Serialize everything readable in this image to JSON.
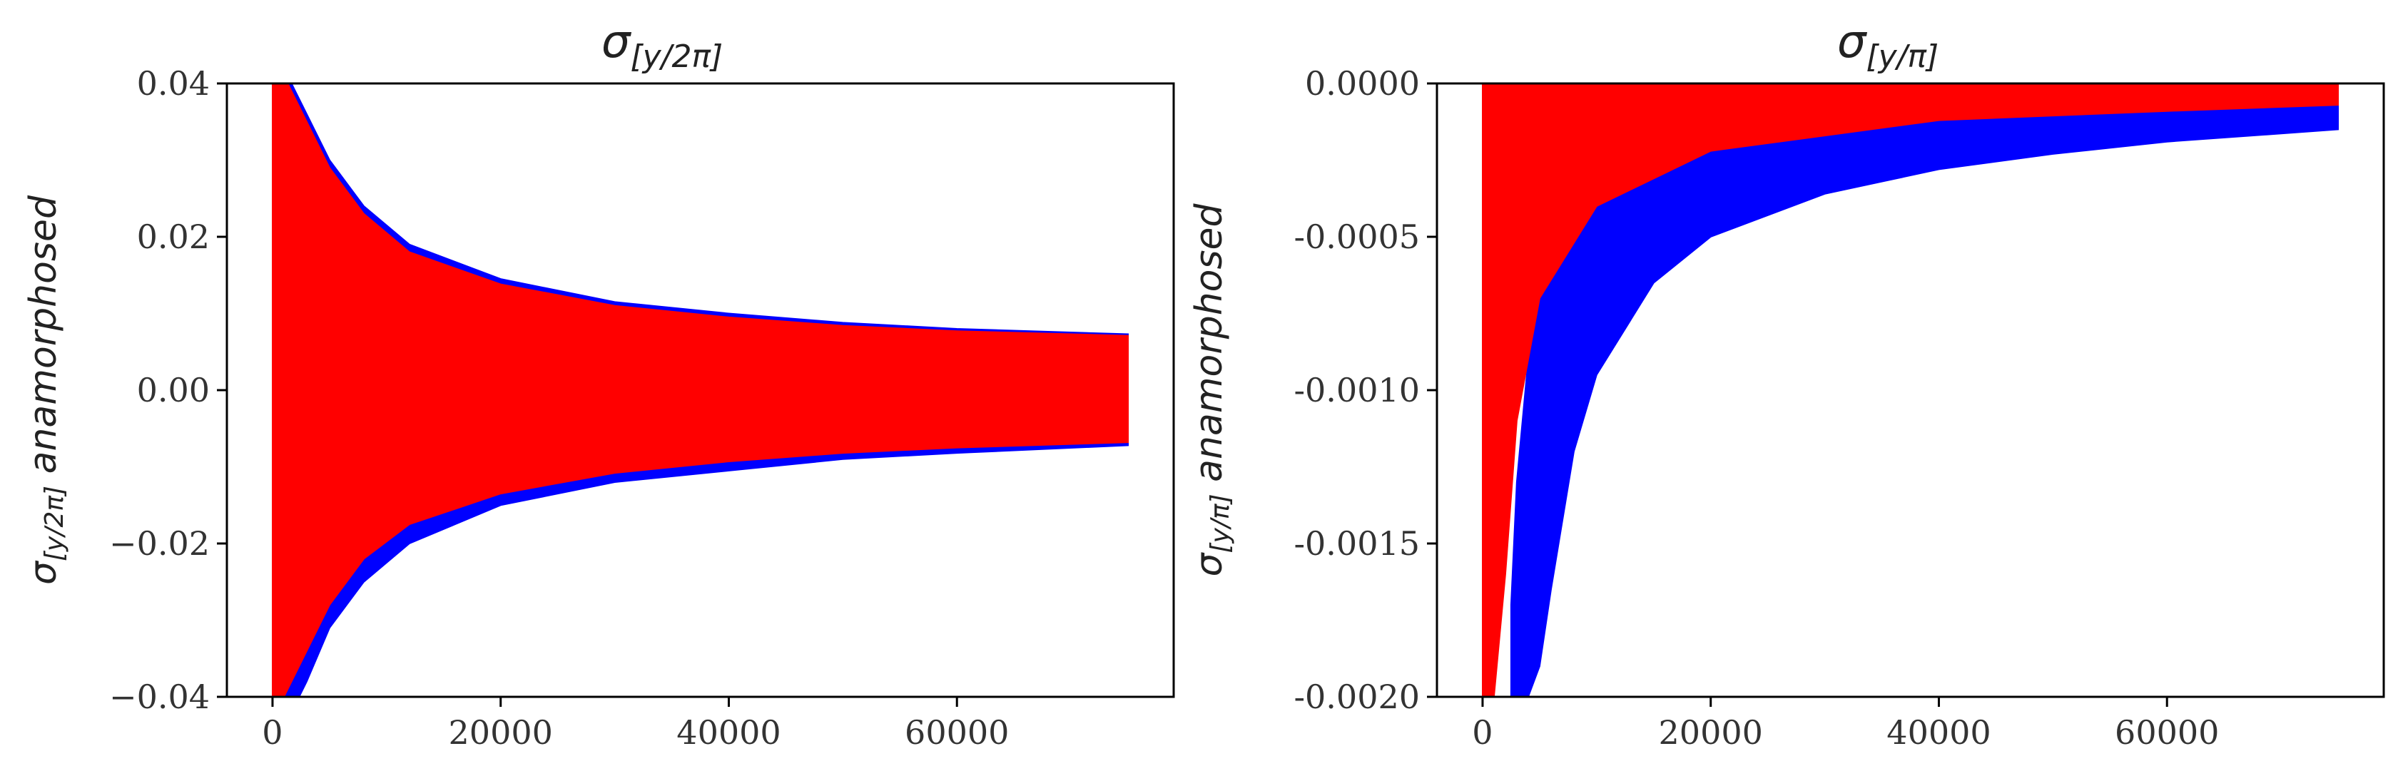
{
  "chart_data": [
    {
      "type": "scatter",
      "title": {
        "main": "σ",
        "sub": "[y/2π]"
      },
      "ylabel": {
        "main": "σ",
        "sub": "[y/2π]",
        "suffix": " anamorphosed"
      },
      "xlabel": "",
      "xlim": [
        -4000,
        79000
      ],
      "ylim": [
        -0.04,
        0.04
      ],
      "xticks": [
        0,
        20000,
        40000,
        60000
      ],
      "xtick_labels": [
        "0",
        "20000",
        "40000",
        "60000"
      ],
      "yticks": [
        -0.04,
        -0.02,
        0.0,
        0.02,
        0.04
      ],
      "ytick_labels": [
        "−0.04",
        "−0.02",
        "0.00",
        "0.02",
        "0.04"
      ],
      "grid": false,
      "series": [
        {
          "color": "#0000ff",
          "envelope": {
            "x": [
              0,
              500,
              1000,
              2000,
              3000,
              5000,
              8000,
              12000,
              20000,
              30000,
              40000,
              50000,
              60000,
              75000
            ],
            "upper": [
              0.045,
              0.044,
              0.042,
              0.039,
              0.036,
              0.03,
              0.024,
              0.019,
              0.0145,
              0.0115,
              0.01,
              0.0088,
              0.008,
              0.0073
            ],
            "lower": [
              -0.045,
              -0.044,
              -0.042,
              -0.041,
              -0.038,
              -0.031,
              -0.025,
              -0.02,
              -0.015,
              -0.012,
              -0.0105,
              -0.009,
              -0.0082,
              -0.0072
            ]
          }
        },
        {
          "color": "#ff0000",
          "envelope": {
            "x": [
              0,
              500,
              1000,
              2000,
              3000,
              5000,
              8000,
              12000,
              20000,
              30000,
              40000,
              50000,
              60000,
              75000
            ],
            "upper": [
              0.043,
              0.042,
              0.041,
              0.038,
              0.035,
              0.029,
              0.023,
              0.018,
              0.0138,
              0.011,
              0.0095,
              0.0084,
              0.0077,
              0.0071
            ],
            "lower": [
              -0.043,
              -0.042,
              -0.04,
              -0.037,
              -0.034,
              -0.028,
              -0.022,
              -0.0175,
              -0.0135,
              -0.0108,
              -0.0093,
              -0.0082,
              -0.0075,
              -0.0068
            ]
          }
        }
      ]
    },
    {
      "type": "scatter",
      "title": {
        "main": "σ",
        "sub": "[y/π]"
      },
      "ylabel": {
        "main": "σ",
        "sub": "[y/π]",
        "suffix": " anamorphosed"
      },
      "xlabel": "",
      "xlim": [
        -4000,
        79000
      ],
      "ylim": [
        -0.002,
        0.0
      ],
      "xticks": [
        0,
        20000,
        40000,
        60000
      ],
      "xtick_labels": [
        "0",
        "20000",
        "40000",
        "60000"
      ],
      "yticks": [
        -0.002,
        -0.0015,
        -0.001,
        -0.0005,
        0.0
      ],
      "ytick_labels": [
        "-0.0020",
        "-0.0015",
        "-0.0010",
        "-0.0005",
        "0.0000"
      ],
      "grid": false,
      "series": [
        {
          "color": "#0000ff",
          "envelope": {
            "x": [
              2500,
              3000,
              4000,
              5000,
              6000,
              8000,
              10000,
              15000,
              20000,
              30000,
              40000,
              50000,
              60000,
              75000
            ],
            "upper": [
              -0.0017,
              -0.0013,
              -0.0009,
              -0.00065,
              -0.0005,
              -0.0004,
              -0.00033,
              -0.00026,
              -0.0002,
              -0.00015,
              -0.00012,
              -0.0001,
              -9e-05,
              -7e-05
            ],
            "lower": [
              -0.002,
              -0.002,
              -0.002,
              -0.0019,
              -0.00165,
              -0.0012,
              -0.00095,
              -0.00065,
              -0.0005,
              -0.00036,
              -0.00028,
              -0.00023,
              -0.00019,
              -0.00015
            ]
          }
        },
        {
          "color": "#ff0000",
          "envelope": {
            "x": [
              0,
              500,
              1000,
              2000,
              3000,
              5000,
              10000,
              20000,
              40000,
              60000,
              75000
            ],
            "upper": [
              0.0,
              0.0,
              0.0,
              0.0,
              0.0,
              0.0,
              0.0,
              0.0,
              0.0,
              0.0,
              0.0
            ],
            "lower": [
              -0.002,
              -0.002,
              -0.002,
              -0.0016,
              -0.0011,
              -0.0007,
              -0.0004,
              -0.00022,
              -0.00012,
              -9e-05,
              -7e-05
            ]
          }
        }
      ]
    }
  ]
}
